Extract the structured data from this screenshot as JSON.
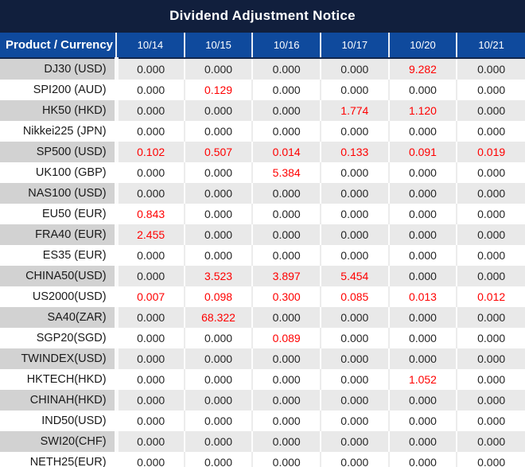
{
  "title": "Dividend Adjustment Notice",
  "colors": {
    "title_bg": "#111f3d",
    "header_bg": "#0f4a9d",
    "header_text": "#ffffff",
    "row_gray_product": "#d2d2d2",
    "row_gray_value": "#e9e9e9",
    "row_white": "#ffffff",
    "value_text": "#262626",
    "highlight_red": "#ff0000"
  },
  "chart_data": {
    "type": "table",
    "title": "Dividend Adjustment Notice",
    "columns": [
      "Product / Currency",
      "10/14",
      "10/15",
      "10/16",
      "10/17",
      "10/20",
      "10/21"
    ],
    "rows": [
      {
        "product": "DJ30 (USD)",
        "values": [
          "0.000",
          "0.000",
          "0.000",
          "0.000",
          "9.282",
          "0.000"
        ],
        "red": [
          false,
          false,
          false,
          false,
          true,
          false
        ]
      },
      {
        "product": "SPI200 (AUD)",
        "values": [
          "0.000",
          "0.129",
          "0.000",
          "0.000",
          "0.000",
          "0.000"
        ],
        "red": [
          false,
          true,
          false,
          false,
          false,
          false
        ]
      },
      {
        "product": "HK50 (HKD)",
        "values": [
          "0.000",
          "0.000",
          "0.000",
          "1.774",
          "1.120",
          "0.000"
        ],
        "red": [
          false,
          false,
          false,
          true,
          true,
          false
        ]
      },
      {
        "product": "Nikkei225 (JPN)",
        "values": [
          "0.000",
          "0.000",
          "0.000",
          "0.000",
          "0.000",
          "0.000"
        ],
        "red": [
          false,
          false,
          false,
          false,
          false,
          false
        ]
      },
      {
        "product": "SP500 (USD)",
        "values": [
          "0.102",
          "0.507",
          "0.014",
          "0.133",
          "0.091",
          "0.019"
        ],
        "red": [
          true,
          true,
          true,
          true,
          true,
          true
        ]
      },
      {
        "product": "UK100 (GBP)",
        "values": [
          "0.000",
          "0.000",
          "5.384",
          "0.000",
          "0.000",
          "0.000"
        ],
        "red": [
          false,
          false,
          true,
          false,
          false,
          false
        ]
      },
      {
        "product": "NAS100 (USD)",
        "values": [
          "0.000",
          "0.000",
          "0.000",
          "0.000",
          "0.000",
          "0.000"
        ],
        "red": [
          false,
          false,
          false,
          false,
          false,
          false
        ]
      },
      {
        "product": "EU50 (EUR)",
        "values": [
          "0.843",
          "0.000",
          "0.000",
          "0.000",
          "0.000",
          "0.000"
        ],
        "red": [
          true,
          false,
          false,
          false,
          false,
          false
        ]
      },
      {
        "product": "FRA40 (EUR)",
        "values": [
          "2.455",
          "0.000",
          "0.000",
          "0.000",
          "0.000",
          "0.000"
        ],
        "red": [
          true,
          false,
          false,
          false,
          false,
          false
        ]
      },
      {
        "product": "ES35 (EUR)",
        "values": [
          "0.000",
          "0.000",
          "0.000",
          "0.000",
          "0.000",
          "0.000"
        ],
        "red": [
          false,
          false,
          false,
          false,
          false,
          false
        ]
      },
      {
        "product": "CHINA50(USD)",
        "values": [
          "0.000",
          "3.523",
          "3.897",
          "5.454",
          "0.000",
          "0.000"
        ],
        "red": [
          false,
          true,
          true,
          true,
          false,
          false
        ]
      },
      {
        "product": "US2000(USD)",
        "values": [
          "0.007",
          "0.098",
          "0.300",
          "0.085",
          "0.013",
          "0.012"
        ],
        "red": [
          true,
          true,
          true,
          true,
          true,
          true
        ]
      },
      {
        "product": "SA40(ZAR)",
        "values": [
          "0.000",
          "68.322",
          "0.000",
          "0.000",
          "0.000",
          "0.000"
        ],
        "red": [
          false,
          true,
          false,
          false,
          false,
          false
        ]
      },
      {
        "product": "SGP20(SGD)",
        "values": [
          "0.000",
          "0.000",
          "0.089",
          "0.000",
          "0.000",
          "0.000"
        ],
        "red": [
          false,
          false,
          true,
          false,
          false,
          false
        ]
      },
      {
        "product": "TWINDEX(USD)",
        "values": [
          "0.000",
          "0.000",
          "0.000",
          "0.000",
          "0.000",
          "0.000"
        ],
        "red": [
          false,
          false,
          false,
          false,
          false,
          false
        ]
      },
      {
        "product": "HKTECH(HKD)",
        "values": [
          "0.000",
          "0.000",
          "0.000",
          "0.000",
          "1.052",
          "0.000"
        ],
        "red": [
          false,
          false,
          false,
          false,
          true,
          false
        ]
      },
      {
        "product": "CHINAH(HKD)",
        "values": [
          "0.000",
          "0.000",
          "0.000",
          "0.000",
          "0.000",
          "0.000"
        ],
        "red": [
          false,
          false,
          false,
          false,
          false,
          false
        ]
      },
      {
        "product": "IND50(USD)",
        "values": [
          "0.000",
          "0.000",
          "0.000",
          "0.000",
          "0.000",
          "0.000"
        ],
        "red": [
          false,
          false,
          false,
          false,
          false,
          false
        ]
      },
      {
        "product": "SWI20(CHF)",
        "values": [
          "0.000",
          "0.000",
          "0.000",
          "0.000",
          "0.000",
          "0.000"
        ],
        "red": [
          false,
          false,
          false,
          false,
          false,
          false
        ]
      },
      {
        "product": "NETH25(EUR)",
        "values": [
          "0.000",
          "0.000",
          "0.000",
          "0.000",
          "0.000",
          "0.000"
        ],
        "red": [
          false,
          false,
          false,
          false,
          false,
          false
        ]
      }
    ]
  }
}
